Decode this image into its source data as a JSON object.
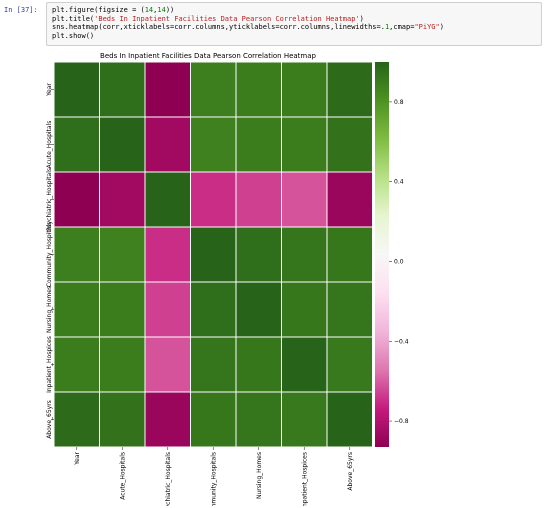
{
  "cell": {
    "prompt": "In [37]:",
    "code_lines": [
      [
        {
          "t": "plt.figure(figsize = (",
          "c": "plain"
        },
        {
          "t": "14",
          "c": "num"
        },
        {
          "t": ",",
          "c": "plain"
        },
        {
          "t": "14",
          "c": "num"
        },
        {
          "t": "))",
          "c": "plain"
        }
      ],
      [
        {
          "t": "plt.title(",
          "c": "plain"
        },
        {
          "t": "'Beds In Inpatient Facilities Data Pearson Correlation Heatmap'",
          "c": "str"
        },
        {
          "t": ")",
          "c": "plain"
        }
      ],
      [
        {
          "t": "sns.heatmap(corr,xticklabels=corr.columns,yticklabels=corr.columns,linewidths=.",
          "c": "plain"
        },
        {
          "t": "1",
          "c": "num"
        },
        {
          "t": ",cmap=",
          "c": "plain"
        },
        {
          "t": "\"PiYG\"",
          "c": "str"
        },
        {
          "t": ")",
          "c": "plain"
        }
      ],
      [
        {
          "t": "plt.show()",
          "c": "plain"
        }
      ]
    ]
  },
  "chart_data": {
    "type": "heatmap",
    "title": "Beds In Inpatient Facilities Data Pearson Correlation Heatmap",
    "colormap": "PiYG",
    "labels": [
      "Year",
      "Acute_Hospitals",
      "Psychiatric_Hospitals",
      "Community_Hospitals",
      "Nursing_Homes",
      "Inpatient_Hospices",
      "Above_65yrs"
    ],
    "values": [
      [
        1.0,
        0.96,
        -0.93,
        0.89,
        0.9,
        0.9,
        0.97
      ],
      [
        0.96,
        1.0,
        -0.86,
        0.88,
        0.9,
        0.9,
        0.94
      ],
      [
        -0.93,
        -0.86,
        1.0,
        -0.7,
        -0.66,
        -0.62,
        -0.89
      ],
      [
        0.89,
        0.88,
        -0.7,
        1.0,
        0.96,
        0.93,
        0.92
      ],
      [
        0.9,
        0.9,
        -0.66,
        0.96,
        1.0,
        0.92,
        0.93
      ],
      [
        0.9,
        0.9,
        -0.62,
        0.93,
        0.92,
        1.0,
        0.91
      ],
      [
        0.97,
        0.94,
        -0.89,
        0.92,
        0.93,
        0.91,
        1.0
      ]
    ],
    "colorbar": {
      "ticks": [
        0.8,
        0.4,
        0.0,
        -0.4,
        -0.8
      ],
      "tick_labels": [
        "0.8",
        "0.4",
        "0.0",
        "−0.4",
        "−0.8"
      ],
      "range": [
        -0.93,
        1.0
      ]
    }
  }
}
